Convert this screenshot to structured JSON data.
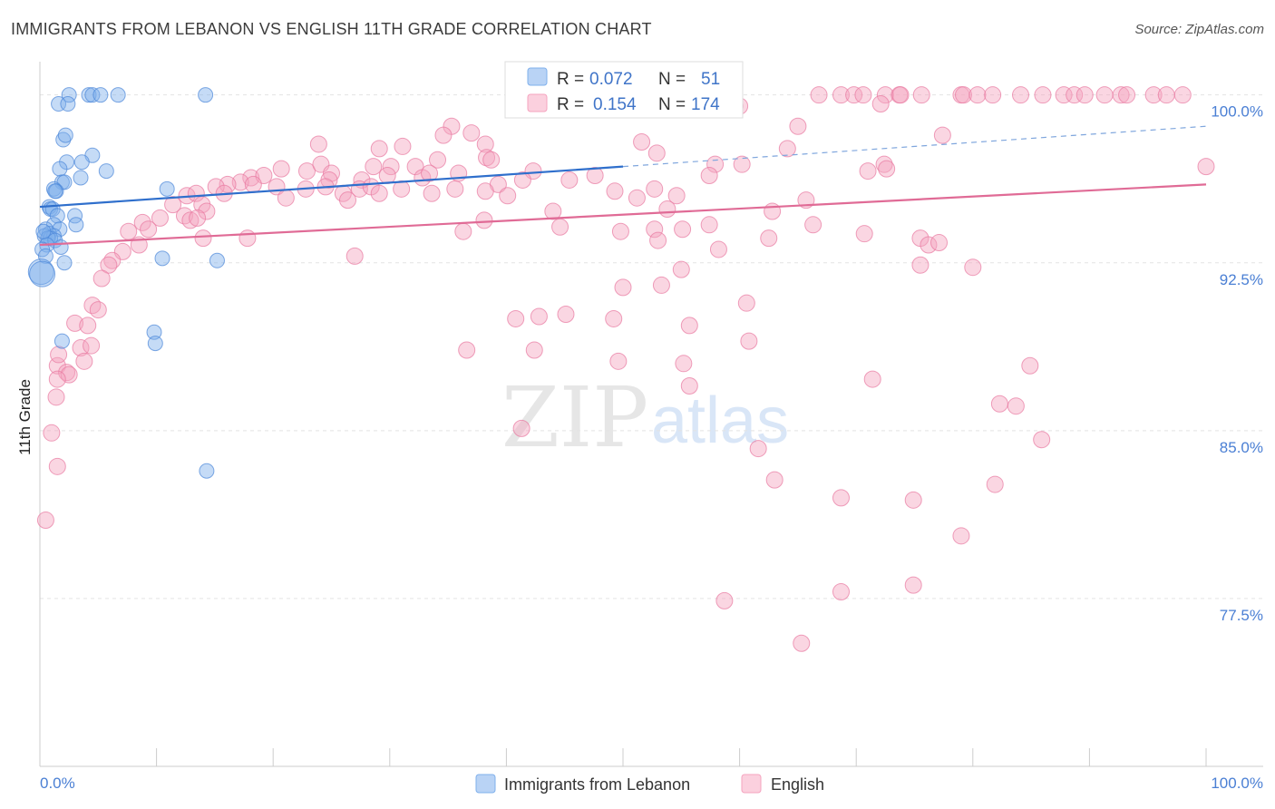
{
  "title": "IMMIGRANTS FROM LEBANON VS ENGLISH 11TH GRADE CORRELATION CHART",
  "source": "Source: ZipAtlas.com",
  "watermark": {
    "zip": "ZIP",
    "atlas": "atlas"
  },
  "chart_data": {
    "type": "scatter",
    "ylabel": "11th Grade",
    "xlim": [
      0,
      100
    ],
    "ylim": [
      70,
      101
    ],
    "y_ticks": [
      {
        "value": 100,
        "label": "100.0%"
      },
      {
        "value": 92.5,
        "label": "92.5%"
      },
      {
        "value": 85,
        "label": "85.0%"
      },
      {
        "value": 77.5,
        "label": "77.5%"
      }
    ],
    "x_ticks": [
      {
        "value": 0,
        "label": "0.0%"
      },
      {
        "value": 100,
        "label": "100.0%"
      }
    ],
    "grid": true,
    "legend_placement": "bottom",
    "stats": [
      {
        "r_label": "R =",
        "r": "0.072",
        "n_label": "N =",
        "n": "51",
        "color": "#7fb0ec"
      },
      {
        "r_label": "R =",
        "r": "0.154",
        "n_label": "N =",
        "n": "174",
        "color": "#f5a3bf"
      }
    ],
    "series": [
      {
        "name": "Immigrants from Lebanon",
        "color": "#7fb0ec",
        "stroke": "#4a86d8",
        "trend": {
          "x0": 0,
          "y0": 95.0,
          "x1": 50,
          "y1": 96.8,
          "dash_x1": 100,
          "dash_y1": 98.6
        },
        "points": [
          [
            2.5,
            100
          ],
          [
            4.2,
            100
          ],
          [
            4.5,
            100
          ],
          [
            5.2,
            100
          ],
          [
            6.7,
            100
          ],
          [
            14.2,
            100
          ],
          [
            1.6,
            99.6
          ],
          [
            2.4,
            99.6
          ],
          [
            2.0,
            98.0
          ],
          [
            2.2,
            98.2
          ],
          [
            4.5,
            97.3
          ],
          [
            3.6,
            97.0
          ],
          [
            2.3,
            97.0
          ],
          [
            1.7,
            96.7
          ],
          [
            5.7,
            96.6
          ],
          [
            3.5,
            96.3
          ],
          [
            1.9,
            96.1
          ],
          [
            2.1,
            96.1
          ],
          [
            1.2,
            95.8
          ],
          [
            1.4,
            95.7
          ],
          [
            1.3,
            95.7
          ],
          [
            10.9,
            95.8
          ],
          [
            0.8,
            95.0
          ],
          [
            0.9,
            94.9
          ],
          [
            1.1,
            94.9
          ],
          [
            1.5,
            94.6
          ],
          [
            3.0,
            94.6
          ],
          [
            1.2,
            94.2
          ],
          [
            3.1,
            94.2
          ],
          [
            0.5,
            94.0
          ],
          [
            1.7,
            94.0
          ],
          [
            0.8,
            93.8
          ],
          [
            0.4,
            93.7
          ],
          [
            1.2,
            93.7
          ],
          [
            0.9,
            93.6
          ],
          [
            0.7,
            93.6
          ],
          [
            1.3,
            93.5
          ],
          [
            0.6,
            93.3
          ],
          [
            1.8,
            93.2
          ],
          [
            0.2,
            93.1
          ],
          [
            0.5,
            92.8
          ],
          [
            10.5,
            92.7
          ],
          [
            15.2,
            92.6
          ],
          [
            2.1,
            92.5
          ],
          [
            0.1,
            92.1
          ],
          [
            9.8,
            89.4
          ],
          [
            9.9,
            88.9
          ],
          [
            1.9,
            89.0
          ],
          [
            14.3,
            83.2
          ],
          [
            0.2,
            92.0
          ],
          [
            0.3,
            93.9
          ]
        ]
      },
      {
        "name": "English",
        "color": "#f5a3bf",
        "stroke": "#e8779f",
        "trend": {
          "x0": 0,
          "y0": 93.3,
          "x1": 100,
          "y1": 96.0
        },
        "points": [
          [
            66.8,
            100
          ],
          [
            68.7,
            100
          ],
          [
            69.8,
            100
          ],
          [
            70.6,
            100
          ],
          [
            72.5,
            100
          ],
          [
            73.7,
            100
          ],
          [
            73.8,
            100
          ],
          [
            75.6,
            100
          ],
          [
            79.0,
            100
          ],
          [
            79.2,
            100
          ],
          [
            80.4,
            100
          ],
          [
            81.7,
            100
          ],
          [
            84.1,
            100
          ],
          [
            86.0,
            100
          ],
          [
            87.8,
            100
          ],
          [
            88.7,
            100
          ],
          [
            89.6,
            100
          ],
          [
            91.3,
            100
          ],
          [
            92.7,
            100
          ],
          [
            93.2,
            100
          ],
          [
            95.5,
            100
          ],
          [
            96.6,
            100
          ],
          [
            98.0,
            100
          ],
          [
            45.9,
            100
          ],
          [
            72.1,
            99.6
          ],
          [
            59.6,
            99.5
          ],
          [
            60.0,
            99.5
          ],
          [
            65.0,
            98.6
          ],
          [
            35.3,
            98.6
          ],
          [
            34.6,
            98.2
          ],
          [
            37.0,
            98.3
          ],
          [
            51.6,
            97.9
          ],
          [
            77.4,
            98.2
          ],
          [
            23.9,
            97.8
          ],
          [
            31.1,
            97.7
          ],
          [
            38.2,
            97.8
          ],
          [
            29.1,
            97.6
          ],
          [
            34.1,
            97.1
          ],
          [
            38.3,
            97.2
          ],
          [
            38.7,
            97.1
          ],
          [
            64.1,
            97.6
          ],
          [
            22.9,
            96.6
          ],
          [
            24.1,
            96.9
          ],
          [
            30.1,
            96.8
          ],
          [
            28.6,
            96.8
          ],
          [
            32.2,
            96.8
          ],
          [
            52.9,
            97.4
          ],
          [
            57.9,
            96.9
          ],
          [
            20.7,
            96.7
          ],
          [
            25.0,
            96.5
          ],
          [
            47.6,
            96.4
          ],
          [
            42.3,
            96.6
          ],
          [
            60.2,
            96.9
          ],
          [
            72.4,
            96.9
          ],
          [
            100,
            96.8
          ],
          [
            18.1,
            96.3
          ],
          [
            19.2,
            96.4
          ],
          [
            24.8,
            96.2
          ],
          [
            27.6,
            96.2
          ],
          [
            29.8,
            96.4
          ],
          [
            32.8,
            96.3
          ],
          [
            33.4,
            96.5
          ],
          [
            35.9,
            96.5
          ],
          [
            39.3,
            96.0
          ],
          [
            41.4,
            96.2
          ],
          [
            57.4,
            96.4
          ],
          [
            71.0,
            96.6
          ],
          [
            72.6,
            96.7
          ],
          [
            17.2,
            96.1
          ],
          [
            16.1,
            96.0
          ],
          [
            18.3,
            96.0
          ],
          [
            15.1,
            95.9
          ],
          [
            20.3,
            95.9
          ],
          [
            22.8,
            95.8
          ],
          [
            24.5,
            95.9
          ],
          [
            27.4,
            95.8
          ],
          [
            28.4,
            95.9
          ],
          [
            31.0,
            95.8
          ],
          [
            29.1,
            95.6
          ],
          [
            38.2,
            95.7
          ],
          [
            49.3,
            95.7
          ],
          [
            52.7,
            95.8
          ],
          [
            15.8,
            95.6
          ],
          [
            12.6,
            95.5
          ],
          [
            13.4,
            95.6
          ],
          [
            21.1,
            95.4
          ],
          [
            26.0,
            95.6
          ],
          [
            33.6,
            95.6
          ],
          [
            35.6,
            95.8
          ],
          [
            45.4,
            96.2
          ],
          [
            51.2,
            95.4
          ],
          [
            54.6,
            95.5
          ],
          [
            13.9,
            95.1
          ],
          [
            11.4,
            95.1
          ],
          [
            14.3,
            94.8
          ],
          [
            26.4,
            95.3
          ],
          [
            40.1,
            95.5
          ],
          [
            65.7,
            95.3
          ],
          [
            53.8,
            94.9
          ],
          [
            62.8,
            94.8
          ],
          [
            66.3,
            94.2
          ],
          [
            44.0,
            94.8
          ],
          [
            12.4,
            94.6
          ],
          [
            10.3,
            94.5
          ],
          [
            12.9,
            94.4
          ],
          [
            13.5,
            94.5
          ],
          [
            38.1,
            94.4
          ],
          [
            44.6,
            94.1
          ],
          [
            57.4,
            94.2
          ],
          [
            8.8,
            94.3
          ],
          [
            9.3,
            94.0
          ],
          [
            7.6,
            93.9
          ],
          [
            14.0,
            93.6
          ],
          [
            17.8,
            93.6
          ],
          [
            36.3,
            93.9
          ],
          [
            49.8,
            93.9
          ],
          [
            52.7,
            94.0
          ],
          [
            55.1,
            94.0
          ],
          [
            75.5,
            93.6
          ],
          [
            76.2,
            93.3
          ],
          [
            8.5,
            93.3
          ],
          [
            7.1,
            93.0
          ],
          [
            58.2,
            93.1
          ],
          [
            53.0,
            93.5
          ],
          [
            62.5,
            93.6
          ],
          [
            70.7,
            93.8
          ],
          [
            77.1,
            93.4
          ],
          [
            6.2,
            92.6
          ],
          [
            5.9,
            92.4
          ],
          [
            75.5,
            92.4
          ],
          [
            80.0,
            92.3
          ],
          [
            27.0,
            92.8
          ],
          [
            55.0,
            92.2
          ],
          [
            5.3,
            91.8
          ],
          [
            53.3,
            91.5
          ],
          [
            50.0,
            91.4
          ],
          [
            4.5,
            90.6
          ],
          [
            5.0,
            90.4
          ],
          [
            3.0,
            89.8
          ],
          [
            4.1,
            89.7
          ],
          [
            49.2,
            90.0
          ],
          [
            55.7,
            89.7
          ],
          [
            60.6,
            90.7
          ],
          [
            40.8,
            90.0
          ],
          [
            42.8,
            90.1
          ],
          [
            45.1,
            90.2
          ],
          [
            3.5,
            88.7
          ],
          [
            4.4,
            88.8
          ],
          [
            1.5,
            87.9
          ],
          [
            2.3,
            87.6
          ],
          [
            2.5,
            87.5
          ],
          [
            3.8,
            88.1
          ],
          [
            49.6,
            88.1
          ],
          [
            36.6,
            88.6
          ],
          [
            42.4,
            88.6
          ],
          [
            55.2,
            88.0
          ],
          [
            1.6,
            88.4
          ],
          [
            1.5,
            87.3
          ],
          [
            1.4,
            86.5
          ],
          [
            83.7,
            86.1
          ],
          [
            71.4,
            87.3
          ],
          [
            55.7,
            87.0
          ],
          [
            60.8,
            89.0
          ],
          [
            84.9,
            87.9
          ],
          [
            82.3,
            86.2
          ],
          [
            1.0,
            84.9
          ],
          [
            41.3,
            85.1
          ],
          [
            1.5,
            83.4
          ],
          [
            61.6,
            84.2
          ],
          [
            85.9,
            84.6
          ],
          [
            63.0,
            82.8
          ],
          [
            68.7,
            82.0
          ],
          [
            74.9,
            81.9
          ],
          [
            0.5,
            81.0
          ],
          [
            79.0,
            80.3
          ],
          [
            74.9,
            78.1
          ],
          [
            68.7,
            77.8
          ],
          [
            81.9,
            82.6
          ],
          [
            58.7,
            77.4
          ],
          [
            65.3,
            75.5
          ]
        ]
      }
    ]
  }
}
